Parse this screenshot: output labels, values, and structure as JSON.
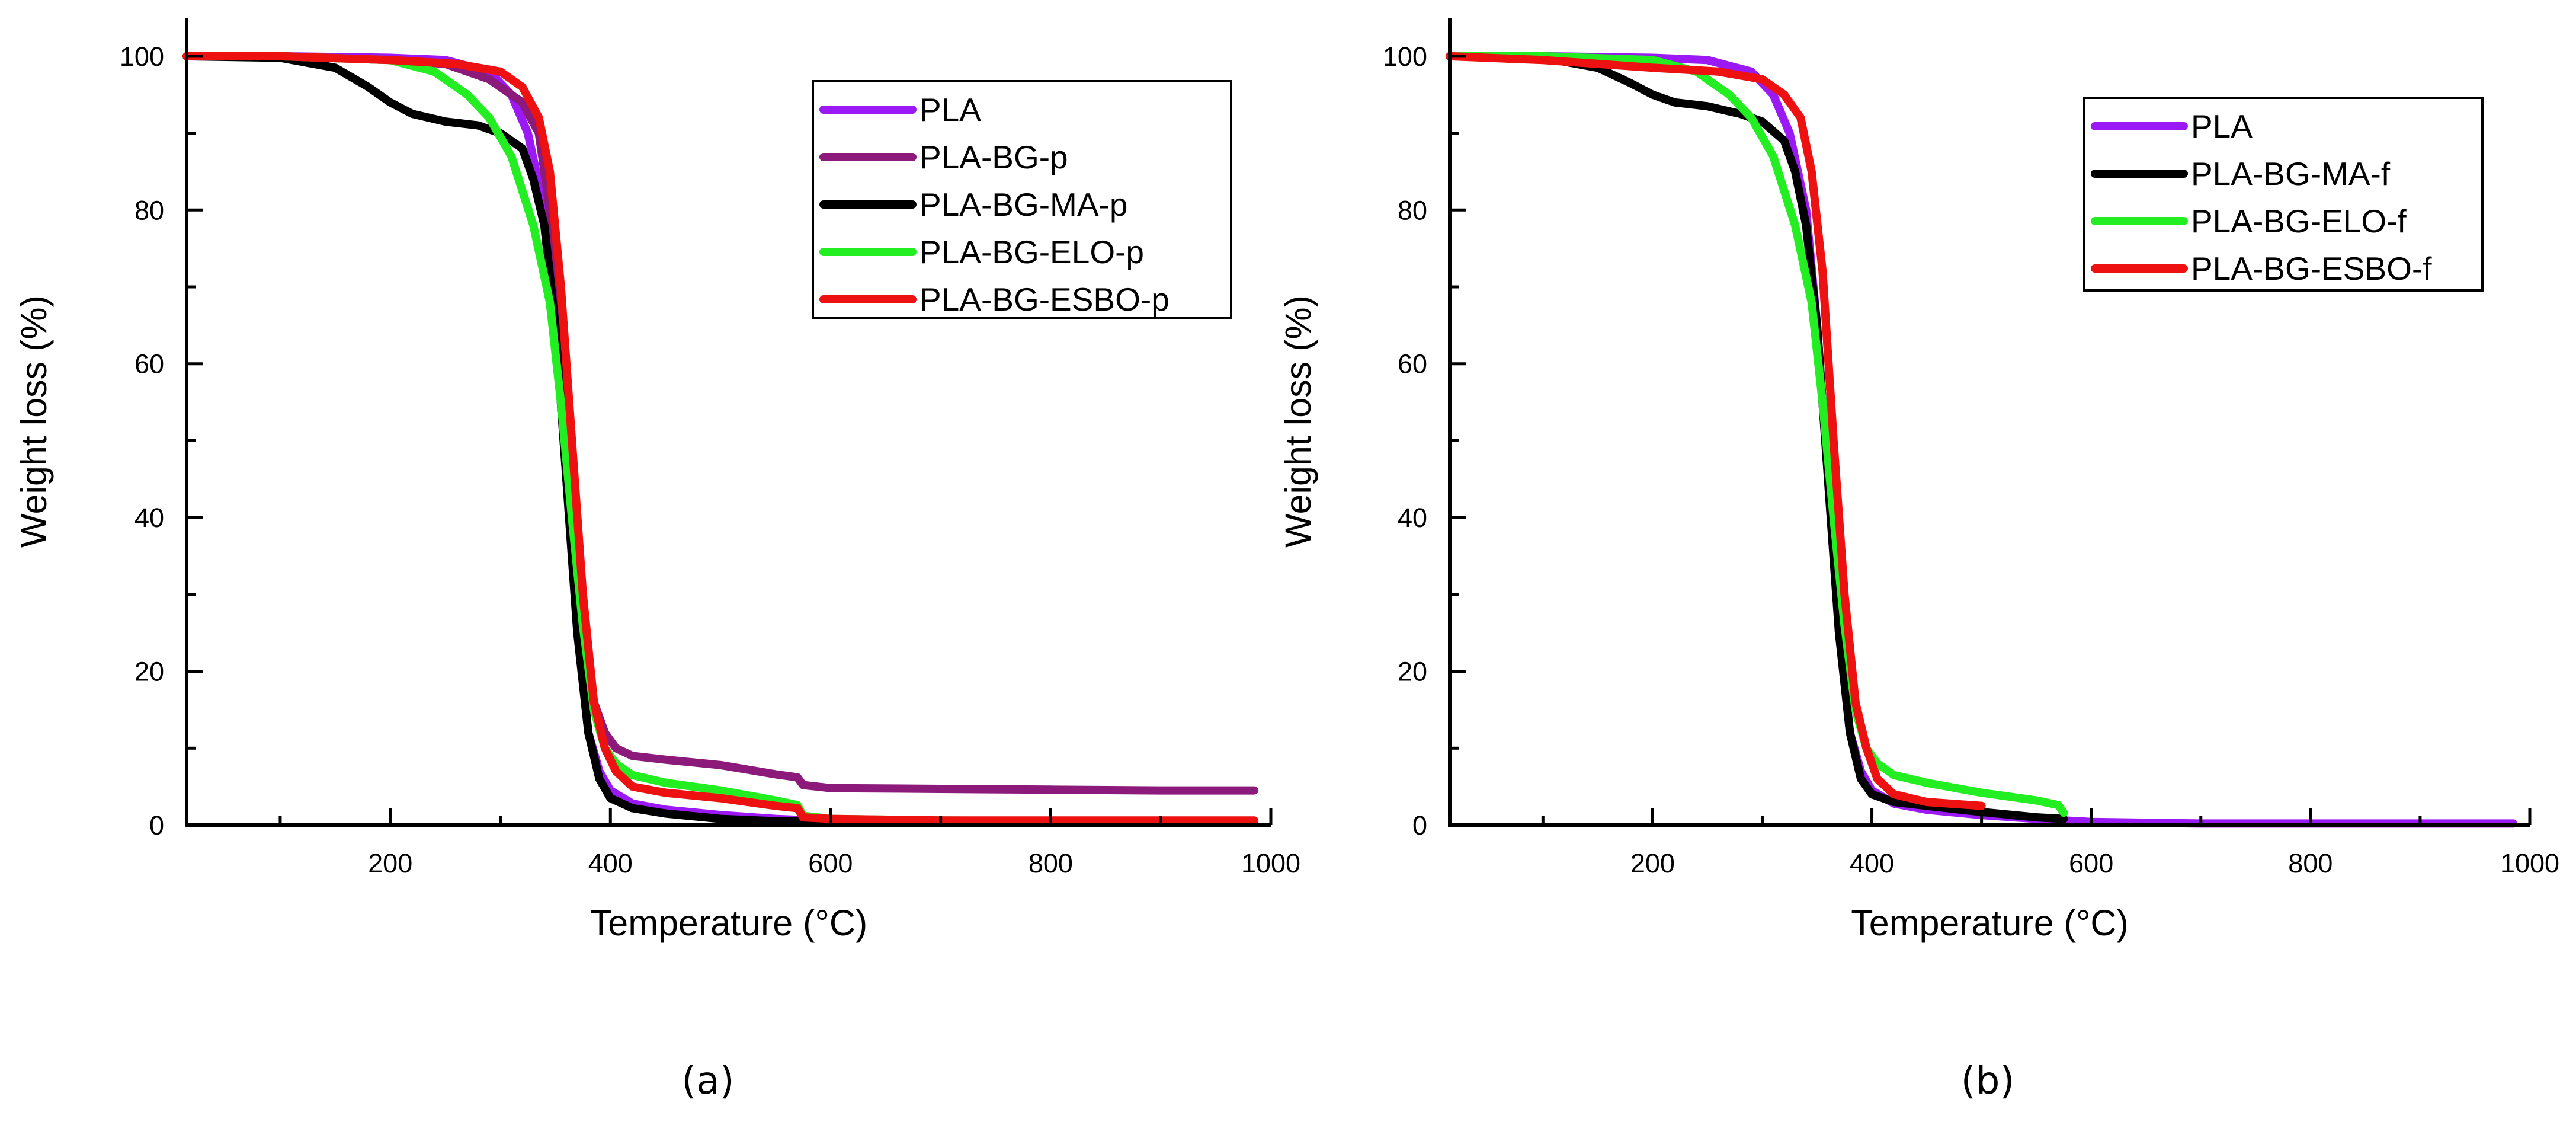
{
  "chart_data": [
    {
      "type": "line",
      "panel_label": "(a)",
      "xlabel": "Temperature (°C)",
      "ylabel": "Weight loss (%)",
      "xlim": [
        15,
        1000
      ],
      "ylim": [
        0,
        105
      ],
      "xticks": [
        200,
        400,
        600,
        800,
        1000
      ],
      "yticks": [
        0,
        20,
        40,
        60,
        80,
        100
      ],
      "legend_position": "top-right",
      "series": [
        {
          "name": "PLA",
          "color": "#9b19f5",
          "x": [
            15,
            100,
            200,
            250,
            290,
            310,
            325,
            340,
            350,
            360,
            370,
            380,
            390,
            400,
            420,
            450,
            500,
            550,
            600,
            700,
            800,
            900,
            985
          ],
          "y": [
            100,
            100,
            99.8,
            99.5,
            98,
            95,
            90,
            80,
            65,
            45,
            25,
            12,
            7,
            4.5,
            2.8,
            2.0,
            1.3,
            0.8,
            0.5,
            0.4,
            0.4,
            0.4,
            0.4
          ]
        },
        {
          "name": "PLA-BG-p",
          "color": "#8b1a7a",
          "x": [
            15,
            100,
            200,
            250,
            290,
            320,
            335,
            345,
            355,
            365,
            375,
            385,
            395,
            405,
            420,
            450,
            500,
            550,
            570,
            575,
            600,
            700,
            800,
            900,
            985
          ],
          "y": [
            100,
            100,
            99.5,
            99,
            97,
            94,
            90,
            80,
            65,
            45,
            28,
            16,
            12,
            10,
            9,
            8.5,
            7.8,
            6.6,
            6.2,
            5.2,
            4.8,
            4.7,
            4.6,
            4.5,
            4.5
          ]
        },
        {
          "name": "PLA-BG-MA-p",
          "color": "#000000",
          "x": [
            15,
            100,
            150,
            180,
            200,
            220,
            250,
            280,
            300,
            320,
            330,
            340,
            350,
            360,
            370,
            380,
            390,
            400,
            420,
            450,
            500,
            550,
            600,
            700,
            800,
            900,
            985
          ],
          "y": [
            100,
            99.8,
            98.5,
            96,
            94,
            92.5,
            91.5,
            91,
            90,
            88,
            84,
            78,
            65,
            45,
            25,
            12,
            6,
            3.5,
            2.2,
            1.5,
            0.8,
            0.5,
            0.4,
            0.3,
            0.3,
            0.3,
            0.3
          ]
        },
        {
          "name": "PLA-BG-ELO-p",
          "color": "#22ee22",
          "x": [
            15,
            100,
            200,
            240,
            270,
            290,
            310,
            330,
            345,
            355,
            365,
            375,
            385,
            395,
            405,
            420,
            450,
            500,
            550,
            570,
            575,
            600,
            700,
            800,
            900,
            985
          ],
          "y": [
            100,
            100,
            99.5,
            98,
            95,
            92,
            87,
            78,
            68,
            55,
            40,
            26,
            15,
            10,
            8,
            6.5,
            5.5,
            4.5,
            3.2,
            2.6,
            1.2,
            0.8,
            0.6,
            0.5,
            0.5,
            0.5
          ]
        },
        {
          "name": "PLA-BG-ESBO-p",
          "color": "#ee1111",
          "x": [
            15,
            100,
            200,
            260,
            300,
            320,
            335,
            345,
            355,
            365,
            375,
            385,
            395,
            405,
            420,
            450,
            500,
            550,
            570,
            575,
            600,
            700,
            800,
            900,
            985
          ],
          "y": [
            100,
            100,
            99.5,
            99,
            98,
            96,
            92,
            85,
            70,
            50,
            30,
            16,
            10,
            7,
            5,
            4.2,
            3.5,
            2.5,
            2.2,
            1.0,
            0.8,
            0.6,
            0.6,
            0.6,
            0.6
          ]
        }
      ]
    },
    {
      "type": "line",
      "panel_label": "(b)",
      "xlabel": "Temperature (°C)",
      "ylabel": "Weight loss (%)",
      "xlim": [
        15,
        1000
      ],
      "ylim": [
        0,
        105
      ],
      "xticks": [
        200,
        400,
        600,
        800,
        1000
      ],
      "yticks": [
        0,
        20,
        40,
        60,
        80,
        100
      ],
      "legend_position": "top-right",
      "series": [
        {
          "name": "PLA",
          "color": "#9b19f5",
          "x": [
            15,
            100,
            200,
            250,
            290,
            310,
            325,
            340,
            350,
            360,
            370,
            380,
            390,
            400,
            420,
            450,
            500,
            550,
            600,
            700,
            800,
            900,
            985
          ],
          "y": [
            100,
            100,
            99.8,
            99.5,
            98,
            95,
            90,
            80,
            65,
            45,
            25,
            12,
            7,
            4.5,
            2.8,
            2.0,
            1.3,
            0.8,
            0.4,
            0.2,
            0.2,
            0.2,
            0.2
          ]
        },
        {
          "name": "PLA-BG-MA-f",
          "color": "#000000",
          "x": [
            15,
            100,
            150,
            180,
            200,
            220,
            250,
            280,
            300,
            320,
            330,
            340,
            350,
            360,
            370,
            380,
            390,
            400,
            420,
            450,
            500,
            550,
            575
          ],
          "y": [
            100,
            99.8,
            98.5,
            96.5,
            95,
            94,
            93.5,
            92.5,
            91.5,
            89,
            85,
            78,
            65,
            45,
            25,
            12,
            6,
            4.0,
            3.0,
            2.5,
            1.7,
            1.0,
            0.8
          ]
        },
        {
          "name": "PLA-BG-ELO-f",
          "color": "#22ee22",
          "x": [
            15,
            100,
            200,
            240,
            270,
            290,
            310,
            330,
            345,
            355,
            365,
            375,
            385,
            395,
            405,
            420,
            450,
            500,
            550,
            570,
            575
          ],
          "y": [
            100,
            100,
            99.5,
            98,
            95,
            92,
            87,
            78,
            68,
            55,
            40,
            26,
            15,
            10,
            8,
            6.5,
            5.5,
            4.2,
            3.2,
            2.6,
            1.6
          ]
        },
        {
          "name": "PLA-BG-ESBO-f",
          "color": "#ee1111",
          "x": [
            15,
            100,
            200,
            260,
            300,
            320,
            335,
            345,
            355,
            365,
            375,
            385,
            395,
            405,
            420,
            450,
            500
          ],
          "y": [
            100,
            99.5,
            98.5,
            98,
            97,
            95,
            92,
            85,
            72,
            50,
            30,
            16,
            10,
            6,
            4,
            3,
            2.5
          ]
        }
      ]
    }
  ]
}
